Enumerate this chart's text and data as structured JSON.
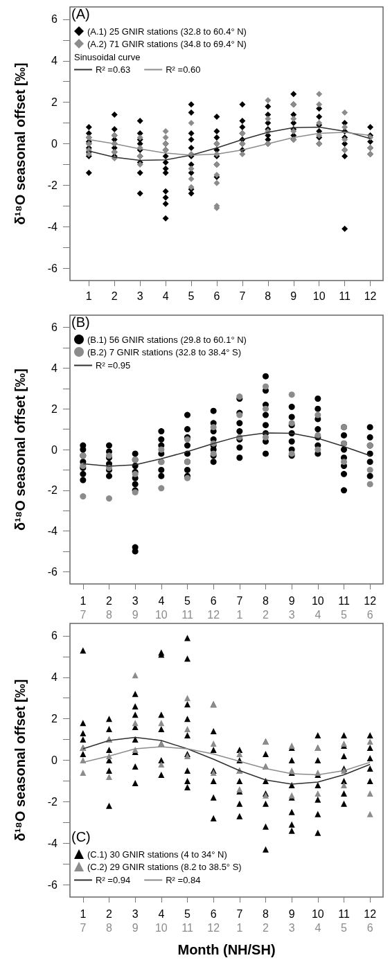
{
  "chart_data": [
    {
      "type": "scatter",
      "title": "(A)",
      "ylabel": "δ¹⁸O seasonal offset [‰]",
      "marker": "diamond",
      "legend": "top left",
      "legend_title": "Sinusoidal curve",
      "grid": false,
      "xlim": [
        0.26,
        12.5
      ],
      "xticks": [
        1,
        2,
        3,
        4,
        5,
        6,
        7,
        8,
        9,
        10,
        11,
        12
      ],
      "ylim": [
        -6.6,
        6.6
      ],
      "yticks": [
        -6,
        {
          "value": -5,
          "label": null
        },
        -4,
        {
          "value": -3,
          "label": null
        },
        -2,
        {
          "value": -1,
          "label": null
        },
        0,
        {
          "value": 1,
          "label": null
        },
        2,
        {
          "value": 3,
          "label": null
        },
        4,
        {
          "value": 5,
          "label": null
        },
        6
      ],
      "series": [
        {
          "name": "(A.1) 25 GNIR stations (32.8 to 60.4° N)",
          "color": "#000000",
          "x": [
            1,
            1,
            1,
            1,
            1,
            1,
            1,
            1,
            1,
            2,
            2,
            2,
            2,
            2,
            2,
            2,
            2,
            3,
            3,
            3,
            3,
            3,
            3,
            3,
            3,
            3,
            4,
            4,
            4,
            4,
            4,
            4,
            4,
            4,
            4,
            4,
            5,
            5,
            5,
            5,
            5,
            5,
            5,
            5,
            5,
            5,
            6,
            6,
            6,
            6,
            6,
            6,
            6,
            6,
            7,
            7,
            7,
            7,
            7,
            7,
            7,
            8,
            8,
            8,
            8,
            8,
            8,
            8,
            9,
            9,
            9,
            9,
            9,
            9,
            9,
            10,
            10,
            10,
            10,
            10,
            10,
            11,
            11,
            11,
            11,
            11,
            11,
            11,
            12,
            12,
            12,
            12,
            12
          ],
          "values": [
            0.8,
            0.5,
            0.3,
            0.1,
            0,
            -0.2,
            -0.4,
            -0.6,
            -1.4,
            1.4,
            0.7,
            0.4,
            0.2,
            0,
            -0.2,
            -0.4,
            -0.6,
            1.1,
            0.5,
            0.2,
            0,
            -0.3,
            -0.6,
            -0.9,
            -1.4,
            -2.4,
            0,
            -0.3,
            -0.6,
            -0.9,
            -1.2,
            -1.4,
            -2.3,
            -2.6,
            -2.9,
            -3.6,
            1.9,
            1.5,
            0.5,
            0.2,
            -0.2,
            -0.6,
            -1,
            -1.4,
            -2.2,
            -2.4,
            1.3,
            0.6,
            0.3,
            0,
            -0.3,
            -0.6,
            -1,
            -1.6,
            1.9,
            1.1,
            0.8,
            0.5,
            0.2,
            0,
            -0.3,
            1.8,
            1.4,
            1,
            0.7,
            0.4,
            0.2,
            0,
            2.4,
            1.9,
            1.4,
            1,
            0.7,
            0.4,
            0.2,
            1.7,
            1.3,
            0.9,
            0.6,
            0.3,
            0,
            1,
            0.6,
            0.3,
            0,
            -0.3,
            -0.6,
            -4.1,
            0.8,
            0.4,
            0.1,
            -0.2,
            -0.5
          ]
        },
        {
          "name": "(A.2) 71 GNIR stations (34.8 to 69.4° N)",
          "color": "#8c8c8c",
          "x": [
            1,
            1,
            1,
            1,
            2,
            2,
            2,
            2,
            3,
            3,
            3,
            3,
            4,
            4,
            4,
            4,
            5,
            5,
            5,
            5,
            5,
            6,
            6,
            6,
            6,
            6,
            6,
            6,
            7,
            7,
            7,
            8,
            8,
            8,
            8,
            9,
            9,
            9,
            9,
            10,
            10,
            10,
            10,
            10,
            11,
            11,
            11,
            11,
            12,
            12,
            12
          ],
          "values": [
            0.3,
            0,
            -0.3,
            -0.5,
            0.4,
            0,
            -0.4,
            -0.7,
            0.3,
            -0.2,
            -0.6,
            -1,
            0.6,
            0.3,
            0,
            -0.3,
            1,
            -0.5,
            -1.2,
            -1.7,
            -2.1,
            0,
            -0.5,
            -1,
            -1.5,
            -1.9,
            -3,
            -3.1,
            0.5,
            0,
            -0.5,
            2.1,
            1.2,
            0.6,
            0,
            1.9,
            1.2,
            0.6,
            0.2,
            2.4,
            1.9,
            1,
            0.4,
            0,
            1.5,
            0.8,
            0.2,
            -0.3,
            0.3,
            -0.2,
            -0.5
          ]
        },
        {
          "type": "line",
          "marker": "none",
          "name": "R² =0.63",
          "color": "#303030",
          "x": [
            1,
            2,
            3,
            4,
            5,
            6,
            7,
            8,
            9,
            10,
            11,
            12
          ],
          "values": [
            -0.35,
            -0.65,
            -0.8,
            -0.78,
            -0.55,
            -0.2,
            0.2,
            0.55,
            0.78,
            0.8,
            0.6,
            0.25
          ]
        },
        {
          "type": "line",
          "marker": "none",
          "name": "R² =0.60",
          "color": "#8c8c8c",
          "x": [
            1,
            2,
            3,
            4,
            5,
            6,
            7,
            8,
            9,
            10,
            11,
            12
          ],
          "values": [
            0.2,
            0,
            -0.25,
            -0.45,
            -0.55,
            -0.5,
            -0.3,
            0,
            0.3,
            0.5,
            0.55,
            0.4
          ]
        }
      ]
    },
    {
      "type": "scatter",
      "title": "(B)",
      "ylabel": "δ¹⁸O seasonal offset [‰]",
      "marker": "circle",
      "legend": "top left",
      "grid": false,
      "categories": [
        "1\n7",
        "2\n8",
        "3\n9",
        "4\n10",
        "5\n11",
        "6\n12",
        "7\n1",
        "8\n2",
        "9\n3",
        "10\n4",
        "11\n5",
        "12\n6"
      ],
      "ylim": [
        -6.6,
        6.6
      ],
      "yticks": [
        -6,
        {
          "value": -5,
          "label": null
        },
        -4,
        {
          "value": -3,
          "label": null
        },
        -2,
        {
          "value": -1,
          "label": null
        },
        0,
        {
          "value": 1,
          "label": null
        },
        2,
        {
          "value": 3,
          "label": null
        },
        4,
        {
          "value": 5,
          "label": null
        },
        6
      ],
      "series": [
        {
          "name": "(B.1) 56 GNIR stations (29.8 to 60.1° N)",
          "color": "#000000",
          "x": [
            "1\n7",
            "1\n7",
            "1\n7",
            "1\n7",
            "1\n7",
            "1\n7",
            "1\n7",
            "2\n8",
            "2\n8",
            "2\n8",
            "2\n8",
            "2\n8",
            "2\n8",
            "3\n9",
            "3\n9",
            "3\n9",
            "3\n9",
            "3\n9",
            "3\n9",
            "3\n9",
            "3\n9",
            "3\n9",
            "4\n10",
            "4\n10",
            "4\n10",
            "4\n10",
            "4\n10",
            "4\n10",
            "4\n10",
            "5\n11",
            "5\n11",
            "5\n11",
            "5\n11",
            "5\n11",
            "5\n11",
            "5\n11",
            "5\n11",
            "6\n12",
            "6\n12",
            "6\n12",
            "6\n12",
            "6\n12",
            "6\n12",
            "6\n12",
            "6\n12",
            "7\n1",
            "7\n1",
            "7\n1",
            "7\n1",
            "7\n1",
            "7\n1",
            "7\n1",
            "8\n2",
            "8\n2",
            "8\n2",
            "8\n2",
            "8\n2",
            "8\n2",
            "8\n2",
            "8\n2",
            "9\n3",
            "9\n3",
            "9\n3",
            "9\n3",
            "9\n3",
            "9\n3",
            "9\n3",
            "10\n4",
            "10\n4",
            "10\n4",
            "10\n4",
            "10\n4",
            "10\n4",
            "10\n4",
            "11\n5",
            "11\n5",
            "11\n5",
            "11\n5",
            "11\n5",
            "11\n5",
            "11\n5",
            "11\n5",
            "12\n6",
            "12\n6",
            "12\n6",
            "12\n6",
            "12\n6",
            "12\n6",
            "12\n6"
          ],
          "values": [
            0.2,
            0,
            -0.3,
            -0.6,
            -0.9,
            -1.2,
            -1.5,
            0.2,
            -0.1,
            -0.4,
            -0.7,
            -1,
            -1.3,
            -0.2,
            -0.5,
            -0.8,
            -1.1,
            -1.4,
            -1.7,
            -2,
            -4.8,
            -5,
            0.9,
            0.5,
            0.2,
            -0.2,
            -0.6,
            -1,
            -1.3,
            1.7,
            1,
            0.6,
            0.2,
            -0.2,
            -0.6,
            -1,
            -1.3,
            1.9,
            1.3,
            0.9,
            0.5,
            0.2,
            0,
            -0.3,
            -0.6,
            2.5,
            1.8,
            1.3,
            0.9,
            0.5,
            0.1,
            -0.4,
            3.6,
            2.9,
            2.2,
            1.7,
            1.2,
            0.8,
            0.4,
            -0.2,
            2.1,
            1.6,
            1.2,
            0.8,
            0.4,
            0,
            -0.3,
            2.5,
            2,
            1.5,
            1,
            0.6,
            0.2,
            -0.2,
            1.1,
            0.7,
            0.3,
            0,
            -0.4,
            -0.8,
            -1.2,
            -2,
            1.1,
            0.6,
            0.2,
            -0.2,
            -0.6,
            null,
            -1.3
          ]
        },
        {
          "name": "(B.2) 7 GNIR stations (32.8 to 38.4° S)",
          "color": "#8c8c8c",
          "x": [
            "1\n7",
            "1\n7",
            "1\n7",
            "2\n8",
            "2\n8",
            "2\n8",
            "3\n9",
            "3\n9",
            "3\n9",
            "4\n10",
            "4\n10",
            "4\n10",
            "5\n11",
            "5\n11",
            "5\n11",
            "6\n12",
            "6\n12",
            "6\n12",
            "7\n1",
            "7\n1",
            "7\n1",
            "8\n2",
            "8\n2",
            "8\n2",
            "9\n3",
            "9\n3",
            "9\n3",
            "10\n4",
            "10\n4",
            "10\n4",
            "11\n5",
            "11\n5",
            "11\n5",
            "12\n6",
            "12\n6",
            "12\n6"
          ],
          "values": [
            -0.3,
            -0.8,
            -2.3,
            -0.3,
            -0.9,
            -2.4,
            -0.5,
            -1.2,
            -2.1,
            0,
            -0.6,
            -1.9,
            0.5,
            -0.6,
            -1.4,
            1.1,
            0.3,
            -0.2,
            2.6,
            1.7,
            0.6,
            3.1,
            2,
            0.6,
            2.7,
            1.3,
            -0.2,
            1.7,
            0.7,
            0,
            1.1,
            0.3,
            -0.6,
            0.2,
            -1,
            -1.7
          ]
        },
        {
          "type": "line",
          "marker": "none",
          "name": "R² =0.95",
          "color": "#303030",
          "x": [
            "1\n7",
            "2\n8",
            "3\n9",
            "4\n10",
            "5\n11",
            "6\n12",
            "7\n1",
            "8\n2",
            "9\n3",
            "10\n4",
            "11\n5",
            "12\n6"
          ],
          "values": [
            -0.7,
            -0.82,
            -0.75,
            -0.45,
            -0.1,
            0.3,
            0.65,
            0.82,
            0.8,
            0.55,
            0.15,
            -0.3
          ]
        }
      ]
    },
    {
      "type": "scatter",
      "title": "(C)",
      "ylabel": "δ¹⁸O seasonal offset [‰]",
      "xlabel": "Month (NH/SH)",
      "marker": "triangle",
      "legend": "bottom left",
      "grid": false,
      "categories": [
        "1\n7",
        "2\n8",
        "3\n9",
        "4\n10",
        "5\n11",
        "6\n12",
        "7\n1",
        "8\n2",
        "9\n3",
        "10\n4",
        "11\n5",
        "12\n6"
      ],
      "ylim": [
        -6.6,
        6.6
      ],
      "yticks": [
        -6,
        {
          "value": -5,
          "label": null
        },
        -4,
        {
          "value": -3,
          "label": null
        },
        -2,
        {
          "value": -1,
          "label": null
        },
        0,
        {
          "value": 1,
          "label": null
        },
        2,
        {
          "value": 3,
          "label": null
        },
        4,
        {
          "value": 5,
          "label": null
        },
        6
      ],
      "series": [
        {
          "name": "(C.1) 30 GNIR stations (4 to 34° N)",
          "color": "#000000",
          "x": [
            "1\n7",
            "1\n7",
            "1\n7",
            "1\n7",
            "1\n7",
            "1\n7",
            "2\n8",
            "2\n8",
            "2\n8",
            "2\n8",
            "2\n8",
            "2\n8",
            "2\n8",
            "3\n9",
            "3\n9",
            "3\n9",
            "3\n9",
            "3\n9",
            "3\n9",
            "3\n9",
            "3\n9",
            "4\n10",
            "4\n10",
            "4\n10",
            "4\n10",
            "4\n10",
            "4\n10",
            "4\n10",
            "5\n11",
            "5\n11",
            "5\n11",
            "5\n11",
            "5\n11",
            "5\n11",
            "5\n11",
            "5\n11",
            "5\n11",
            "6\n12",
            "6\n12",
            "6\n12",
            "6\n12",
            "6\n12",
            "6\n12",
            "6\n12",
            "7\n1",
            "7\n1",
            "7\n1",
            "7\n1",
            "7\n1",
            "7\n1",
            "7\n1",
            "8\n2",
            "8\n2",
            "8\n2",
            "8\n2",
            "8\n2",
            "8\n2",
            "8\n2",
            "8\n2",
            "9\n3",
            "9\n3",
            "9\n3",
            "9\n3",
            "9\n3",
            "9\n3",
            "9\n3",
            "9\n3",
            "10\n4",
            "10\n4",
            "10\n4",
            "10\n4",
            "10\n4",
            "10\n4",
            "10\n4",
            "10\n4",
            "11\n5",
            "11\n5",
            "11\n5",
            "11\n5",
            "11\n5",
            "11\n5",
            "11\n5",
            "12\n6",
            "12\n6",
            "12\n6",
            "12\n6",
            "12\n6"
          ],
          "values": [
            5.3,
            1.8,
            1.3,
            1,
            0.6,
            0.3,
            2,
            1.5,
            1,
            0.5,
            0,
            -0.5,
            -2.2,
            3.2,
            2.6,
            2.2,
            1.6,
            1,
            0.4,
            -0.3,
            -1.1,
            5.2,
            5.1,
            2.2,
            1.5,
            0.8,
            0,
            -0.7,
            5.9,
            4.9,
            2.7,
            2,
            1.2,
            0.3,
            -0.5,
            -1,
            -1.3,
            2.7,
            1.4,
            0.5,
            -0.5,
            -1,
            -1.8,
            -2.8,
            0.5,
            0,
            -0.5,
            -1,
            -1.5,
            -2.1,
            -2.7,
            0.9,
            0.3,
            -0.3,
            -1,
            -1.6,
            -2.1,
            -3.2,
            -4.3,
            0.6,
            0,
            -0.6,
            -1.2,
            -1.8,
            -2.5,
            -3.1,
            -3.4,
            1.2,
            0.6,
            0,
            -0.7,
            -1.2,
            -1.9,
            -2.6,
            -3.5,
            1.2,
            0.7,
            0.2,
            -0.4,
            -1,
            -1.6,
            -2.1,
            1.2,
            0.6,
            0.1,
            -0.4,
            -1
          ]
        },
        {
          "name": "(C.2) 29 GNIR stations (8.2 to 38.5° S)",
          "color": "#8c8c8c",
          "x": [
            "1\n7",
            "1\n7",
            "1\n7",
            "2\n8",
            "2\n8",
            "2\n8",
            "3\n9",
            "3\n9",
            "3\n9",
            "4\n10",
            "4\n10",
            "4\n10",
            "5\n11",
            "5\n11",
            "5\n11",
            "6\n12",
            "6\n12",
            "6\n12",
            "7\n1",
            "7\n1",
            "7\n1",
            "8\n2",
            "8\n2",
            "8\n2",
            "9\n3",
            "9\n3",
            "9\n3",
            "10\n4",
            "10\n4",
            "10\n4",
            "11\n5",
            "11\n5",
            "11\n5",
            "12\n6",
            "12\n6",
            "12\n6"
          ],
          "values": [
            0.6,
            0,
            -0.6,
            1,
            0.2,
            -0.8,
            4.1,
            1.8,
            0.5,
            1.8,
            0.8,
            -0.2,
            3,
            1.5,
            0.2,
            2.7,
            0.8,
            -0.6,
            0.3,
            -0.5,
            -1.4,
            0.9,
            -0.3,
            -1.7,
            0.7,
            -0.5,
            -1.7,
            0.6,
            -0.6,
            -1.6,
            0.8,
            -0.5,
            -1.2,
            0.9,
            -1.6,
            -2.6
          ]
        },
        {
          "type": "line",
          "marker": "none",
          "name": "R² =0.94",
          "color": "#303030",
          "x": [
            "1\n7",
            "2\n8",
            "3\n9",
            "4\n10",
            "5\n11",
            "6\n12",
            "7\n1",
            "8\n2",
            "9\n3",
            "10\n4",
            "11\n5",
            "12\n6"
          ],
          "values": [
            0.55,
            0.95,
            1.1,
            0.95,
            0.55,
            0.05,
            -0.5,
            -0.95,
            -1.15,
            -1.05,
            -0.7,
            -0.2
          ]
        },
        {
          "type": "line",
          "marker": "none",
          "name": "R² =0.84",
          "color": "#8c8c8c",
          "x": [
            "1\n7",
            "2\n8",
            "3\n9",
            "4\n10",
            "5\n11",
            "6\n12",
            "7\n1",
            "8\n2",
            "9\n3",
            "10\n4",
            "11\n5",
            "12\n6"
          ],
          "values": [
            -0.1,
            0.2,
            0.55,
            0.65,
            0.55,
            0.3,
            -0.05,
            -0.4,
            -0.65,
            -0.7,
            -0.5,
            -0.1
          ]
        }
      ]
    }
  ]
}
